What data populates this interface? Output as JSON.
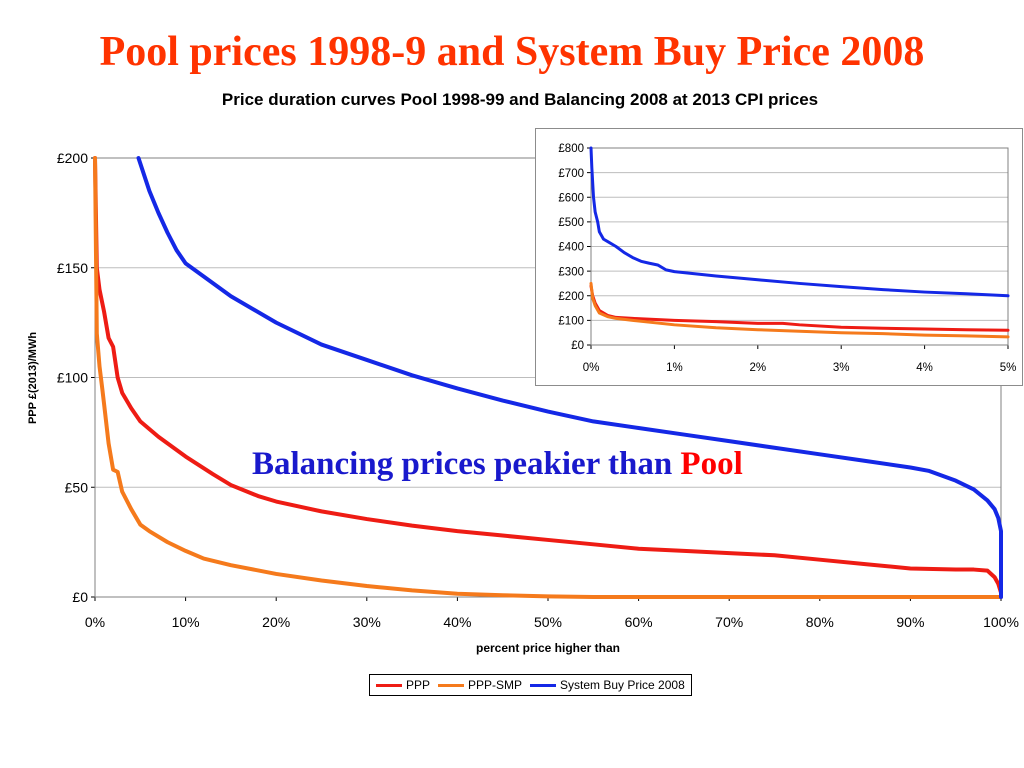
{
  "slide": {
    "title": "Pool prices 1998-9 and System Buy Price 2008",
    "callout_main": "Balancing prices peakier than ",
    "callout_emph": "Pool"
  },
  "colors": {
    "title": "#ff3300",
    "callout": "#1919cc",
    "callout_emph": "#ff0000",
    "ppp": "#ee1c14",
    "ppp_smp": "#f57a1c",
    "sbp": "#1428e6"
  },
  "chart_data": [
    {
      "type": "line",
      "title": "Price duration curves Pool 1998-99 and Balancing 2008 at 2013 CPI prices",
      "xlabel": "percent price higher than",
      "ylabel": "PPP £(2013)/MWh",
      "xlim": [
        0,
        100
      ],
      "ylim": [
        0,
        200
      ],
      "x_ticks": [
        "0%",
        "10%",
        "20%",
        "30%",
        "40%",
        "50%",
        "60%",
        "70%",
        "80%",
        "90%",
        "100%"
      ],
      "y_ticks": [
        "£0",
        "£50",
        "£100",
        "£150",
        "£200"
      ],
      "grid": true,
      "legend": "bottom",
      "series": [
        {
          "name": "PPP",
          "color": "#ee1c14",
          "points": [
            [
              0,
              200
            ],
            [
              0.2,
              150
            ],
            [
              0.5,
              140
            ],
            [
              1,
              130
            ],
            [
              1.5,
              118
            ],
            [
              2,
              114
            ],
            [
              2.5,
              100
            ],
            [
              3,
              93
            ],
            [
              4,
              86
            ],
            [
              5,
              80
            ],
            [
              7,
              73
            ],
            [
              10,
              64
            ],
            [
              13,
              56
            ],
            [
              15,
              51
            ],
            [
              18,
              46
            ],
            [
              20,
              43.5
            ],
            [
              25,
              39
            ],
            [
              30,
              35.5
            ],
            [
              35,
              32.5
            ],
            [
              40,
              30
            ],
            [
              45,
              28
            ],
            [
              50,
              26
            ],
            [
              55,
              24
            ],
            [
              60,
              22
            ],
            [
              65,
              21
            ],
            [
              70,
              20
            ],
            [
              75,
              19
            ],
            [
              80,
              17
            ],
            [
              85,
              15
            ],
            [
              90,
              13
            ],
            [
              95,
              12.5
            ],
            [
              97,
              12.5
            ],
            [
              98.5,
              12
            ],
            [
              99.3,
              9
            ],
            [
              99.7,
              6
            ],
            [
              100,
              2
            ]
          ]
        },
        {
          "name": "PPP-SMP",
          "color": "#f57a1c",
          "points": [
            [
              0,
              200
            ],
            [
              0.2,
              120
            ],
            [
              0.5,
              105
            ],
            [
              0.8,
              95
            ],
            [
              1,
              88
            ],
            [
              1.5,
              70
            ],
            [
              2,
              58
            ],
            [
              2.5,
              57
            ],
            [
              3,
              48
            ],
            [
              4,
              40
            ],
            [
              5,
              33
            ],
            [
              6,
              30
            ],
            [
              8,
              25
            ],
            [
              10,
              21
            ],
            [
              12,
              17.5
            ],
            [
              15,
              14.5
            ],
            [
              20,
              10.5
            ],
            [
              25,
              7.5
            ],
            [
              30,
              5
            ],
            [
              35,
              3
            ],
            [
              40,
              1.5
            ],
            [
              45,
              0.8
            ],
            [
              50,
              0.3
            ],
            [
              55,
              0
            ],
            [
              100,
              0
            ]
          ]
        },
        {
          "name": "System Buy Price 2008",
          "color": "#1428e6",
          "points": [
            [
              4.8,
              200
            ],
            [
              6,
              185
            ],
            [
              7,
              175
            ],
            [
              8,
              166
            ],
            [
              9,
              158
            ],
            [
              10,
              152
            ],
            [
              12,
              146
            ],
            [
              15,
              137
            ],
            [
              20,
              125
            ],
            [
              25,
              115
            ],
            [
              30,
              108
            ],
            [
              35,
              101
            ],
            [
              40,
              95
            ],
            [
              45,
              89.5
            ],
            [
              50,
              84.5
            ],
            [
              55,
              80
            ],
            [
              60,
              77
            ],
            [
              65,
              74
            ],
            [
              70,
              71
            ],
            [
              75,
              68
            ],
            [
              80,
              65
            ],
            [
              85,
              62
            ],
            [
              90,
              59
            ],
            [
              92,
              57.5
            ],
            [
              95,
              53
            ],
            [
              97,
              49
            ],
            [
              98.5,
              44
            ],
            [
              99.3,
              40
            ],
            [
              99.7,
              36
            ],
            [
              100,
              30
            ],
            [
              100,
              0
            ]
          ]
        }
      ]
    },
    {
      "type": "line",
      "xlim": [
        0,
        5
      ],
      "ylim": [
        0,
        800
      ],
      "x_ticks": [
        "0%",
        "1%",
        "2%",
        "3%",
        "4%",
        "5%"
      ],
      "y_ticks": [
        "£0",
        "£100",
        "£200",
        "£300",
        "£400",
        "£500",
        "£600",
        "£700",
        "£800"
      ],
      "grid": true,
      "series": [
        {
          "name": "PPP",
          "color": "#ee1c14",
          "points": [
            [
              0,
              240
            ],
            [
              0.02,
              200
            ],
            [
              0.05,
              170
            ],
            [
              0.1,
              140
            ],
            [
              0.2,
              120
            ],
            [
              0.3,
              112
            ],
            [
              0.5,
              108
            ],
            [
              1,
              100
            ],
            [
              1.5,
              95
            ],
            [
              2,
              88
            ],
            [
              2.3,
              88
            ],
            [
              2.5,
              82
            ],
            [
              3,
              72
            ],
            [
              3.5,
              68
            ],
            [
              4,
              65
            ],
            [
              4.5,
              62
            ],
            [
              5,
              60
            ]
          ]
        },
        {
          "name": "PPP-SMP",
          "color": "#f57a1c",
          "points": [
            [
              0,
              250
            ],
            [
              0.02,
              190
            ],
            [
              0.05,
              160
            ],
            [
              0.1,
              130
            ],
            [
              0.2,
              115
            ],
            [
              0.3,
              108
            ],
            [
              0.5,
              100
            ],
            [
              1,
              82
            ],
            [
              1.5,
              70
            ],
            [
              2,
              62
            ],
            [
              2.5,
              56
            ],
            [
              3,
              50
            ],
            [
              3.5,
              46
            ],
            [
              4,
              40
            ],
            [
              4.5,
              37
            ],
            [
              5,
              33
            ]
          ]
        },
        {
          "name": "System Buy Price 2008",
          "color": "#1428e6",
          "points": [
            [
              0,
              800
            ],
            [
              0.01,
              720
            ],
            [
              0.03,
              600
            ],
            [
              0.05,
              540
            ],
            [
              0.08,
              500
            ],
            [
              0.1,
              460
            ],
            [
              0.15,
              430
            ],
            [
              0.2,
              420
            ],
            [
              0.3,
              400
            ],
            [
              0.4,
              375
            ],
            [
              0.5,
              355
            ],
            [
              0.6,
              340
            ],
            [
              0.7,
              332
            ],
            [
              0.8,
              325
            ],
            [
              0.9,
              305
            ],
            [
              1,
              298
            ],
            [
              1.5,
              280
            ],
            [
              2,
              265
            ],
            [
              2.5,
              250
            ],
            [
              3,
              237
            ],
            [
              3.5,
              225
            ],
            [
              4,
              215
            ],
            [
              4.5,
              208
            ],
            [
              5,
              200
            ]
          ]
        }
      ]
    }
  ]
}
